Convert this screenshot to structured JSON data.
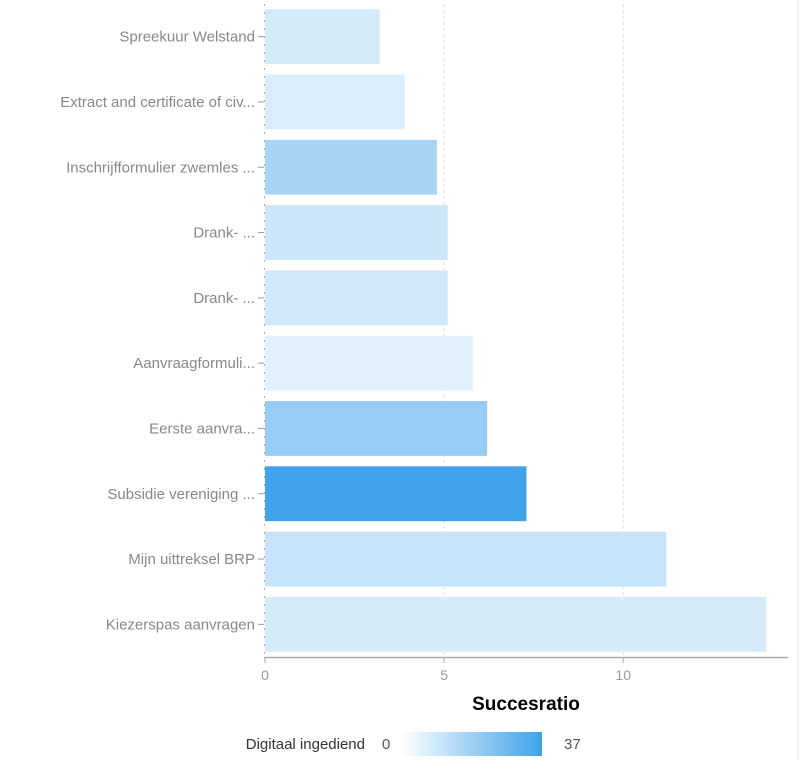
{
  "chart_data": {
    "type": "bar",
    "orientation": "horizontal",
    "categories": [
      "Spreekuur Welstand",
      "Extract and certificate of civ...",
      "Inschrijfformulier zwemles ...",
      "Drank- ...",
      "Drank- ...",
      "Aanvraagformuli...",
      "Eerste aanvra...",
      "Subsidie vereniging ...",
      "Mijn uittreksel BRP",
      "Kiezerspas aanvragen"
    ],
    "values": [
      3.2,
      3.9,
      4.8,
      5.1,
      5.1,
      5.8,
      6.2,
      7.3,
      11.2,
      14.0
    ],
    "color_values": [
      8,
      7,
      17,
      10,
      9,
      6,
      20,
      37,
      11,
      8
    ],
    "xlabel": "Succesratio",
    "ylabel": "",
    "xlim": [
      0,
      14.6
    ],
    "xticks": [
      0,
      5,
      10
    ],
    "grid": "vertical-dashed",
    "legend": {
      "title": "Digitaal ingediend",
      "min_label": "0",
      "max_label": "37",
      "min": 0,
      "max": 37,
      "color_low": "#ffffff",
      "color_high": "#3fa2ea",
      "placement": "bottom"
    }
  }
}
